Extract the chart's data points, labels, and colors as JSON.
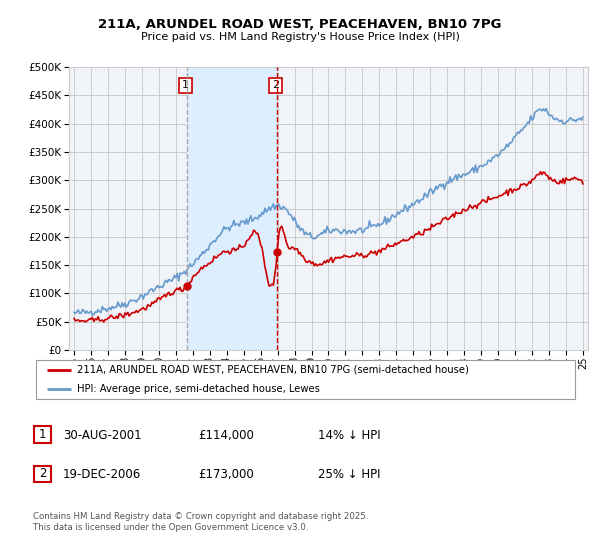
{
  "title": "211A, ARUNDEL ROAD WEST, PEACEHAVEN, BN10 7PG",
  "subtitle": "Price paid vs. HM Land Registry's House Price Index (HPI)",
  "legend_line1": "211A, ARUNDEL ROAD WEST, PEACEHAVEN, BN10 7PG (semi-detached house)",
  "legend_line2": "HPI: Average price, semi-detached house, Lewes",
  "footer": "Contains HM Land Registry data © Crown copyright and database right 2025.\nThis data is licensed under the Open Government Licence v3.0.",
  "purchase1_label": "1",
  "purchase1_date": "30-AUG-2001",
  "purchase1_price": "£114,000",
  "purchase1_hpi": "14% ↓ HPI",
  "purchase1_year": 2001.67,
  "purchase1_value": 114000,
  "purchase2_label": "2",
  "purchase2_date": "19-DEC-2006",
  "purchase2_price": "£173,000",
  "purchase2_hpi": "25% ↓ HPI",
  "purchase2_year": 2006.97,
  "purchase2_value": 173000,
  "red_color": "#cc0000",
  "blue_color": "#6699cc",
  "shade_color": "#ddeeff",
  "vline1_color": "#aaaaaa",
  "vline2_color": "#cc0000",
  "background_color": "#f0f4f8",
  "grid_color": "#cccccc",
  "ylim": [
    0,
    500000
  ],
  "yticks": [
    0,
    50000,
    100000,
    150000,
    200000,
    250000,
    300000,
    350000,
    400000,
    450000,
    500000
  ],
  "xlim_start": 1994.7,
  "xlim_end": 2025.3
}
